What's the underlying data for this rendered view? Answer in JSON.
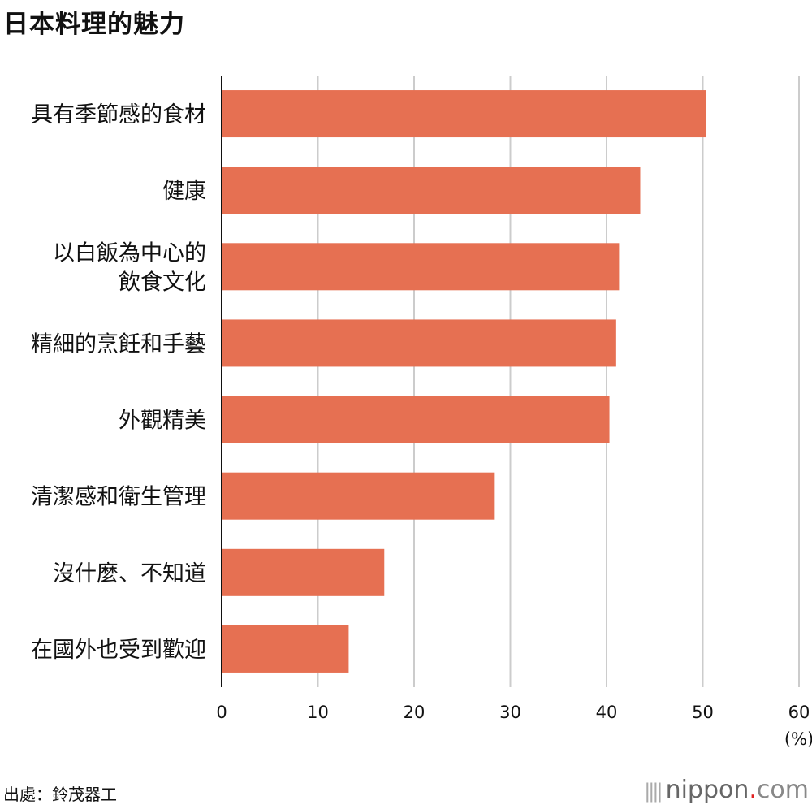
{
  "chart_data": {
    "type": "bar",
    "orientation": "horizontal",
    "title": "日本料理的魅力",
    "categories": [
      "具有季節感的食材",
      "健康",
      "以白飯為中心的\n飲食文化",
      "精細的烹飪和手藝",
      "外觀精美",
      "清潔感和衛生管理",
      "沒什麼、不知道",
      "在國外也受到歡迎"
    ],
    "values": [
      50.3,
      43.5,
      41.3,
      41.0,
      40.3,
      28.3,
      16.9,
      13.2
    ],
    "xlim": [
      0,
      60
    ],
    "xticks": [
      "0",
      "10",
      "20",
      "30",
      "40",
      "50",
      "60"
    ],
    "xunit": "(%)",
    "grid": true,
    "bar_color": "#e67052",
    "grid_color": "#cccccc"
  },
  "source": "出處：鈴茂器工",
  "logo": {
    "name": "nippon",
    "dot": ".",
    "suffix": "com"
  }
}
